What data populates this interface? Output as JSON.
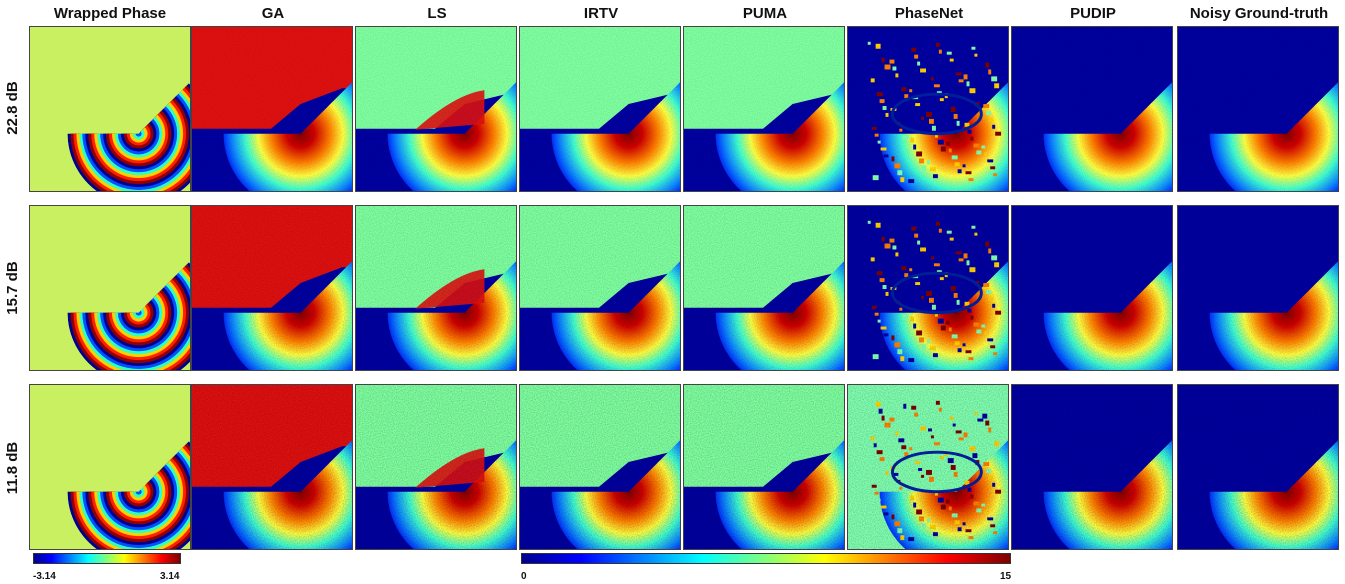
{
  "figure": {
    "columns": [
      "Wrapped Phase",
      "GA",
      "LS",
      "IRTV",
      "PUMA",
      "PhaseNet",
      "PUDIP",
      "Noisy Ground-truth"
    ],
    "rows": [
      "22.8 dB",
      "15.7 dB",
      "11.8 dB"
    ],
    "colormap": "jet",
    "wrapped_colorbar": {
      "min_label": "-3.14",
      "max_label": "3.14",
      "range": [
        -3.14,
        3.14
      ]
    },
    "phase_colorbar": {
      "min_label": "0",
      "max_label": "15",
      "range": [
        0,
        15
      ]
    },
    "colors": {
      "jet_dark_blue": "#00008f",
      "jet_cyan": "#00ffff",
      "jet_yellow": "#ffff00",
      "jet_red": "#ff0000",
      "jet_dark_red": "#800000",
      "wrapped_background": "#c8f060",
      "upper_region_mint": "#7fffa0",
      "upper_region_red": "#e01010"
    }
  }
}
